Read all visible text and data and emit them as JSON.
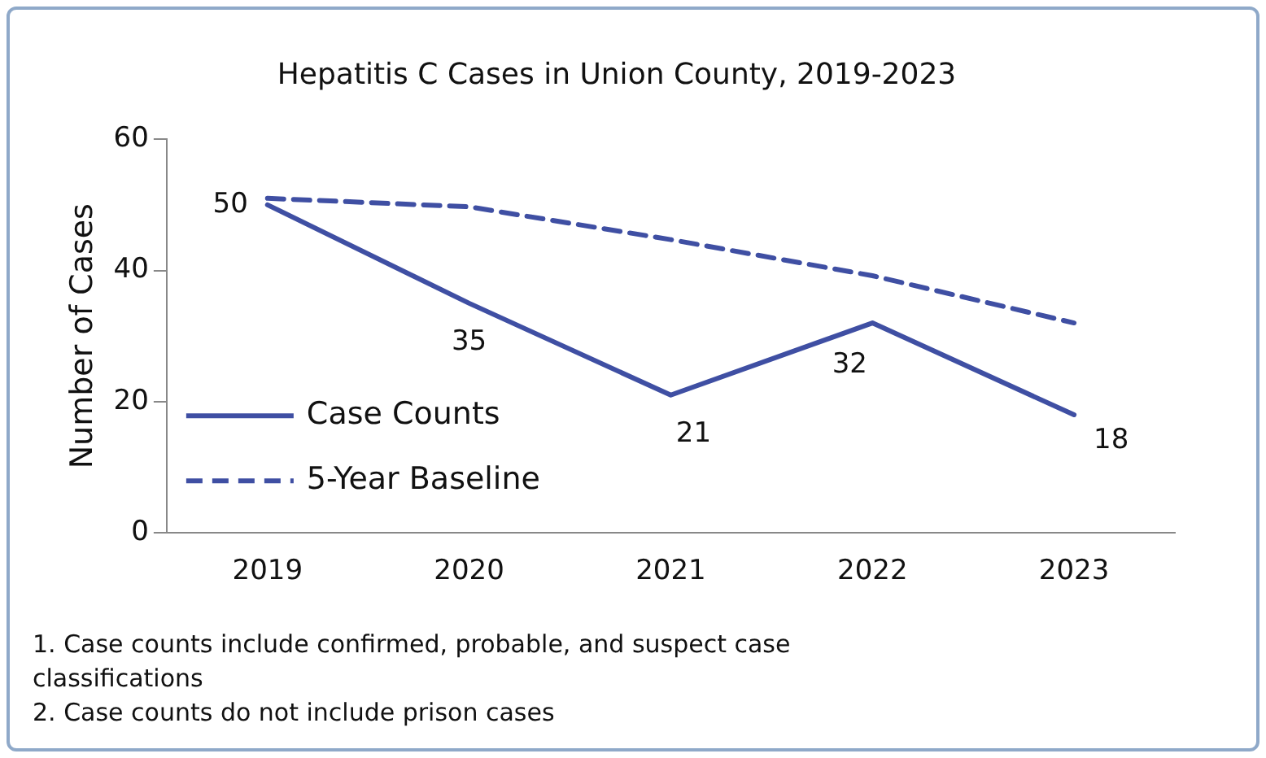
{
  "chart_data": {
    "type": "line",
    "title": "Hepatitis C Cases in Union County, 2019-2023",
    "ylabel": "Number of Cases",
    "categories": [
      "2019",
      "2020",
      "2021",
      "2022",
      "2023"
    ],
    "series": [
      {
        "name": "Case Counts",
        "color": "#3f4fa3",
        "values": [
          50,
          35,
          21,
          32,
          18
        ],
        "value_labels": [
          "50",
          "35",
          "21",
          "32",
          "18"
        ],
        "line_style": "solid"
      },
      {
        "name": "5-Year Baseline",
        "color": "#3f4fa3",
        "values": [
          51,
          49.7,
          44.7,
          39.2,
          32
        ],
        "line_style": "dashed"
      }
    ],
    "ylim": [
      0,
      60
    ],
    "yticks": [
      0,
      20,
      40,
      60
    ],
    "grid": false,
    "legend": "bottom left",
    "marker": "none",
    "annotations": [
      "1. Case counts include confirmed, probable, and suspect case classifications",
      "2. Case counts do not include prison cases"
    ]
  }
}
